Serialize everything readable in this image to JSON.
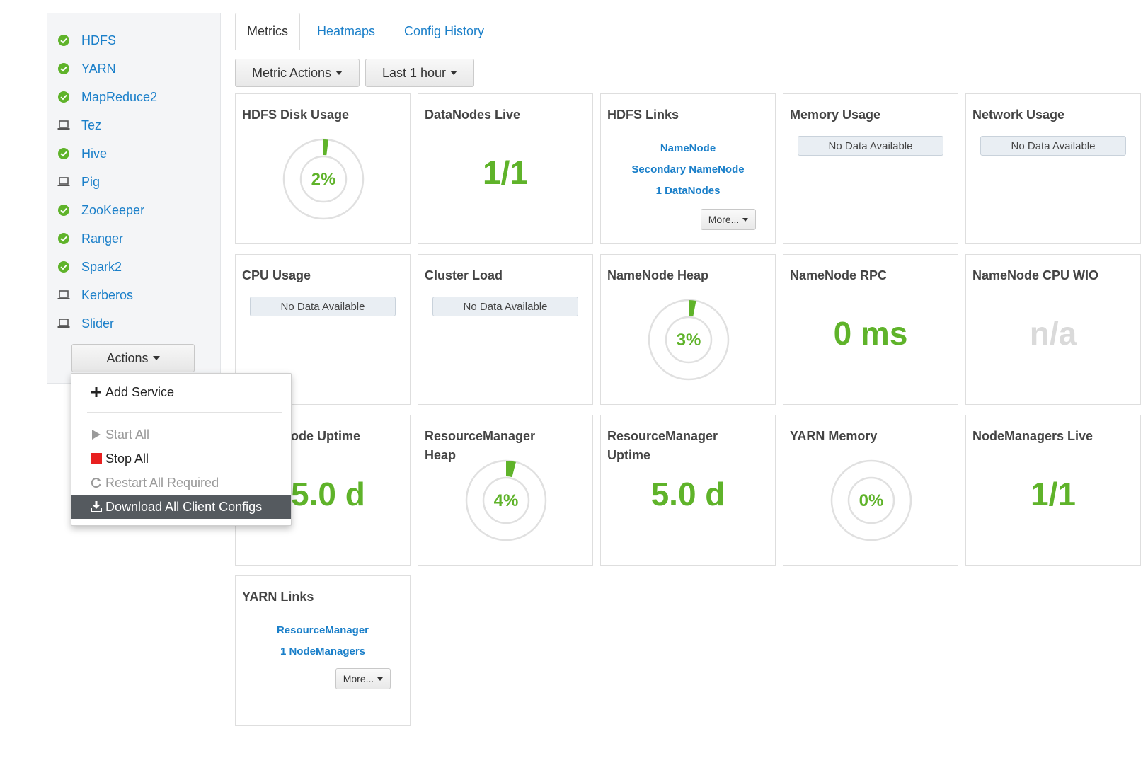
{
  "sidebar": {
    "services": [
      {
        "label": "HDFS",
        "icon": "check-circle-icon"
      },
      {
        "label": "YARN",
        "icon": "check-circle-icon"
      },
      {
        "label": "MapReduce2",
        "icon": "check-circle-icon"
      },
      {
        "label": "Tez",
        "icon": "laptop-icon"
      },
      {
        "label": "Hive",
        "icon": "check-circle-icon"
      },
      {
        "label": "Pig",
        "icon": "laptop-icon"
      },
      {
        "label": "ZooKeeper",
        "icon": "check-circle-icon"
      },
      {
        "label": "Ranger",
        "icon": "check-circle-icon"
      },
      {
        "label": "Spark2",
        "icon": "check-circle-icon"
      },
      {
        "label": "Kerberos",
        "icon": "laptop-icon"
      },
      {
        "label": "Slider",
        "icon": "laptop-icon"
      }
    ],
    "actions_label": "Actions"
  },
  "actions_menu": {
    "add_service": "Add Service",
    "start_all": "Start All",
    "stop_all": "Stop All",
    "restart_all": "Restart All Required",
    "download_configs": "Download All Client Configs"
  },
  "tabs": {
    "metrics": "Metrics",
    "heatmaps": "Heatmaps",
    "config_history": "Config History"
  },
  "toolbar": {
    "metric_actions": "Metric Actions",
    "time_range": "Last 1 hour"
  },
  "widgets": {
    "hdfs_disk_usage": {
      "title": "HDFS Disk Usage",
      "value": "2%",
      "fraction": 0.02
    },
    "datanodes_live": {
      "title": "DataNodes Live",
      "value": "1/1"
    },
    "hdfs_links": {
      "title": "HDFS Links",
      "links": [
        "NameNode",
        "Secondary NameNode",
        "1 DataNodes"
      ],
      "more": "More..."
    },
    "memory_usage": {
      "title": "Memory Usage",
      "nodata": "No Data Available"
    },
    "network_usage": {
      "title": "Network Usage",
      "nodata": "No Data Available"
    },
    "cpu_usage": {
      "title": "CPU Usage",
      "nodata": "No Data Available"
    },
    "cluster_load": {
      "title": "Cluster Load",
      "nodata": "No Data Available"
    },
    "namenode_heap": {
      "title": "NameNode Heap",
      "value": "3%",
      "fraction": 0.03
    },
    "namenode_rpc": {
      "title": "NameNode RPC",
      "value": "0 ms"
    },
    "namenode_cpu_wio": {
      "title": "NameNode CPU WIO",
      "value": "n/a"
    },
    "namenode_uptime": {
      "title": "ode Uptime",
      "value": "5.0 d"
    },
    "rm_heap": {
      "title": "ResourceManager Heap",
      "value": "4%",
      "fraction": 0.04
    },
    "rm_uptime": {
      "title": "ResourceManager Uptime",
      "value": "5.0 d"
    },
    "yarn_memory": {
      "title": "YARN Memory",
      "value": "0%",
      "fraction": 0.0
    },
    "nodemanagers_live": {
      "title": "NodeManagers Live",
      "value": "1/1"
    },
    "yarn_links": {
      "title": "YARN Links",
      "links": [
        "ResourceManager",
        "1 NodeManagers"
      ],
      "more": "More..."
    }
  },
  "colors": {
    "accent_green": "#5fb32a",
    "link_blue": "#1a7fc9",
    "stop_red": "#e82020",
    "gauge_ring": "#e0e0e0"
  }
}
